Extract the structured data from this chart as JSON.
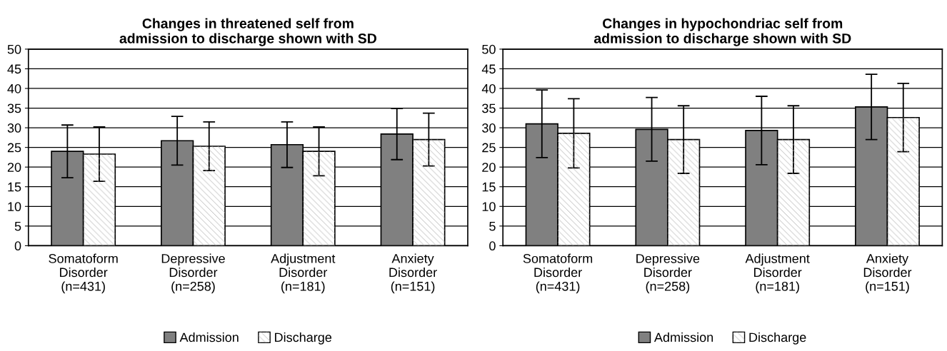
{
  "chart_data": [
    {
      "type": "bar",
      "title": "Changes in threatened self from\nadmission to discharge shown with SD",
      "categories": [
        "Somatoform\nDisorder\n(n=431)",
        "Depressive\nDisorder\n(n=258)",
        "Adjustment\nDisorder\n(n=181)",
        "Anxiety\nDisorder\n(n=151)"
      ],
      "series": [
        {
          "name": "Admission",
          "color": "#808080",
          "values": [
            24.0,
            26.7,
            25.7,
            28.4
          ],
          "errors": [
            6.7,
            6.2,
            5.8,
            6.5
          ]
        },
        {
          "name": "Discharge",
          "color": "#ffffff",
          "values": [
            23.3,
            25.3,
            24.0,
            27.0
          ],
          "errors": [
            6.9,
            6.2,
            6.2,
            6.7
          ]
        }
      ],
      "ylim": [
        0,
        50
      ],
      "yticks": [
        0,
        5,
        10,
        15,
        20,
        25,
        30,
        35,
        40,
        45,
        50
      ],
      "grid": "y",
      "legend": "bottom"
    },
    {
      "type": "bar",
      "title": "Changes in hypochondriac self from\nadmission to discharge shown with SD",
      "categories": [
        "Somatoform\nDisorder\n(n=431)",
        "Depressive\nDisorder\n(n=258)",
        "Adjustment\nDisorder\n(n=181)",
        "Anxiety\nDisorder\n(n=151)"
      ],
      "series": [
        {
          "name": "Admission",
          "color": "#808080",
          "values": [
            31.0,
            29.6,
            29.3,
            35.3
          ],
          "errors": [
            8.6,
            8.1,
            8.7,
            8.3
          ]
        },
        {
          "name": "Discharge",
          "color": "#ffffff",
          "values": [
            28.6,
            27.0,
            27.0,
            32.6
          ],
          "errors": [
            8.8,
            8.6,
            8.6,
            8.7
          ]
        }
      ],
      "ylim": [
        0,
        50
      ],
      "yticks": [
        0,
        5,
        10,
        15,
        20,
        25,
        30,
        35,
        40,
        45,
        50
      ],
      "grid": "y",
      "legend": "bottom"
    }
  ]
}
